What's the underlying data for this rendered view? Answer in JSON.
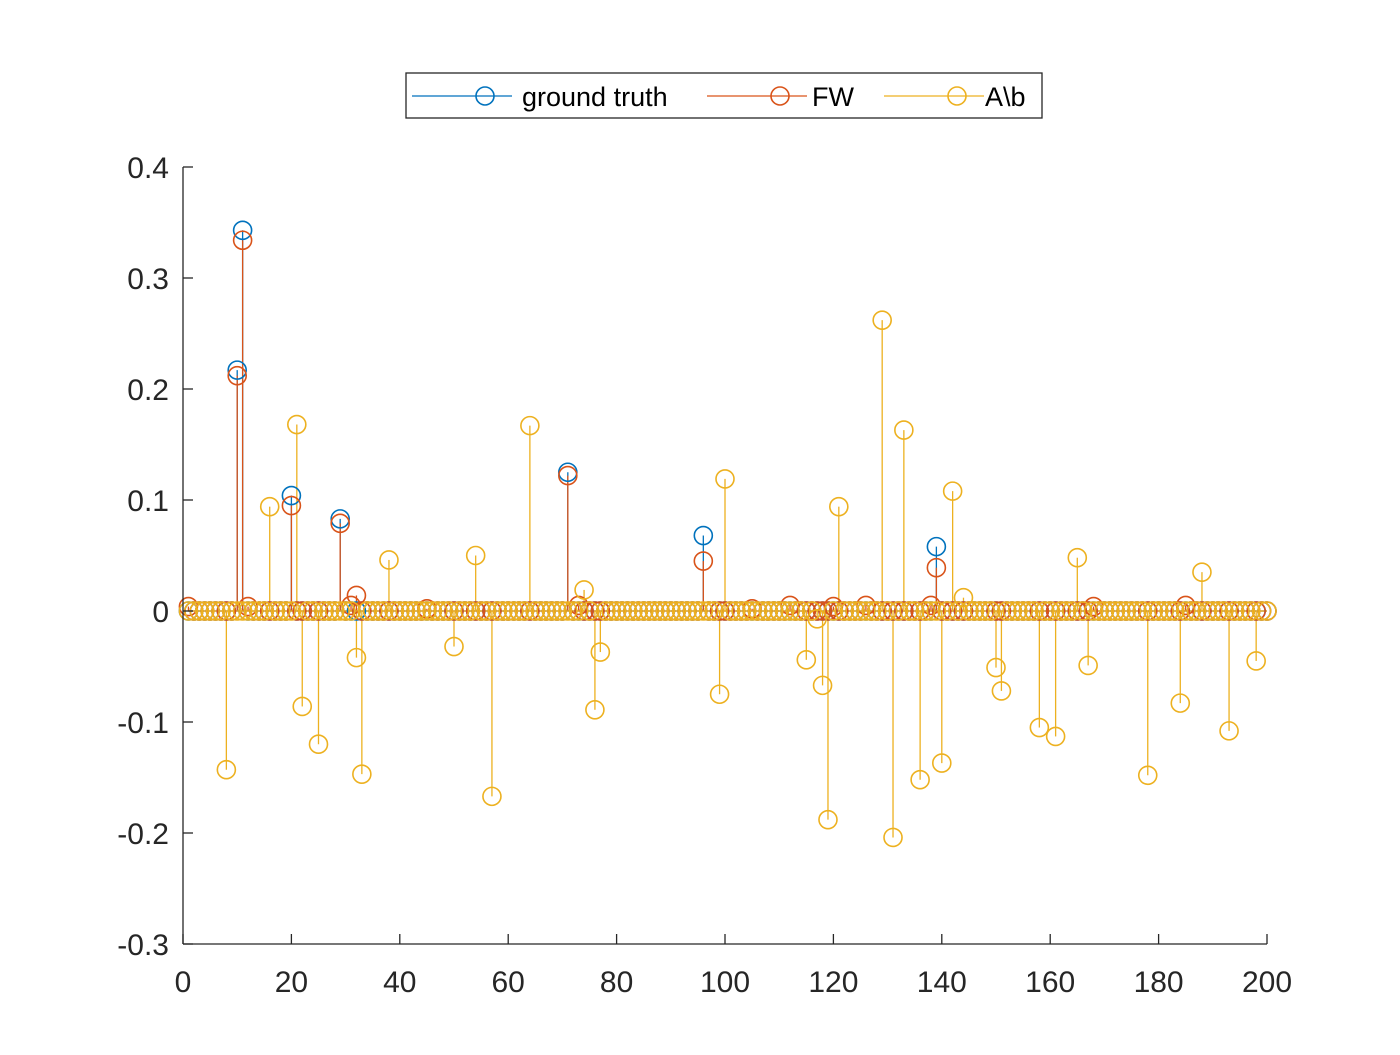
{
  "chart_data": {
    "type": "stem",
    "title": "",
    "xlabel": "",
    "ylabel": "",
    "xlim": [
      0,
      200
    ],
    "ylim": [
      -0.3,
      0.4
    ],
    "xticks": [
      0,
      20,
      40,
      60,
      80,
      100,
      120,
      140,
      160,
      180,
      200
    ],
    "xtick_labels": [
      "0",
      "20",
      "40",
      "60",
      "80",
      "100",
      "120",
      "140",
      "160",
      "180",
      "200"
    ],
    "yticks": [
      -0.3,
      -0.2,
      -0.1,
      0,
      0.1,
      0.2,
      0.3,
      0.4
    ],
    "ytick_labels": [
      "-0.3",
      "-0.2",
      "-0.1",
      "0",
      "0.1",
      "0.2",
      "0.3",
      "0.4"
    ],
    "grid": false,
    "legend": {
      "placement": "top-center (outside axes)",
      "entries": [
        "ground truth",
        "FW",
        "A\\b"
      ]
    },
    "marker": "circle",
    "n_points": 200,
    "x_start": 1,
    "default_value": 0,
    "series": [
      {
        "name": "ground truth",
        "color": "#0072BD",
        "nonzero": [
          [
            10,
            0.217
          ],
          [
            11,
            0.343
          ],
          [
            20,
            0.104
          ],
          [
            29,
            0.083
          ],
          [
            71,
            0.125
          ],
          [
            96,
            0.068
          ],
          [
            139,
            0.058
          ]
        ]
      },
      {
        "name": "FW",
        "color": "#D95319",
        "nonzero": [
          [
            1,
            0.004
          ],
          [
            10,
            0.212
          ],
          [
            11,
            0.334
          ],
          [
            12,
            0.004
          ],
          [
            20,
            0.095
          ],
          [
            29,
            0.079
          ],
          [
            31,
            0.005
          ],
          [
            32,
            0.014
          ],
          [
            45,
            0.002
          ],
          [
            71,
            0.122
          ],
          [
            73,
            0.005
          ],
          [
            96,
            0.045
          ],
          [
            105,
            0.002
          ],
          [
            112,
            0.005
          ],
          [
            120,
            0.004
          ],
          [
            126,
            0.005
          ],
          [
            138,
            0.005
          ],
          [
            139,
            0.039
          ],
          [
            168,
            0.004
          ],
          [
            185,
            0.005
          ]
        ]
      },
      {
        "name": "A\\b",
        "color": "#EDB120",
        "nonzero": [
          [
            8,
            -0.143
          ],
          [
            16,
            0.094
          ],
          [
            21,
            0.168
          ],
          [
            22,
            -0.086
          ],
          [
            25,
            -0.12
          ],
          [
            32,
            -0.042
          ],
          [
            33,
            -0.147
          ],
          [
            38,
            0.046
          ],
          [
            50,
            -0.032
          ],
          [
            54,
            0.05
          ],
          [
            57,
            -0.167
          ],
          [
            64,
            0.167
          ],
          [
            74,
            0.019
          ],
          [
            76,
            -0.089
          ],
          [
            77,
            -0.037
          ],
          [
            99,
            -0.075
          ],
          [
            100,
            0.119
          ],
          [
            115,
            -0.044
          ],
          [
            117,
            -0.007
          ],
          [
            118,
            -0.067
          ],
          [
            119,
            -0.188
          ],
          [
            121,
            0.094
          ],
          [
            129,
            0.262
          ],
          [
            131,
            -0.204
          ],
          [
            133,
            0.163
          ],
          [
            136,
            -0.152
          ],
          [
            140,
            -0.137
          ],
          [
            142,
            0.108
          ],
          [
            144,
            0.012
          ],
          [
            150,
            -0.051
          ],
          [
            151,
            -0.072
          ],
          [
            158,
            -0.105
          ],
          [
            161,
            -0.113
          ],
          [
            165,
            0.048
          ],
          [
            167,
            -0.049
          ],
          [
            178,
            -0.148
          ],
          [
            184,
            -0.083
          ],
          [
            188,
            0.035
          ],
          [
            193,
            -0.108
          ],
          [
            198,
            -0.045
          ]
        ]
      }
    ]
  }
}
